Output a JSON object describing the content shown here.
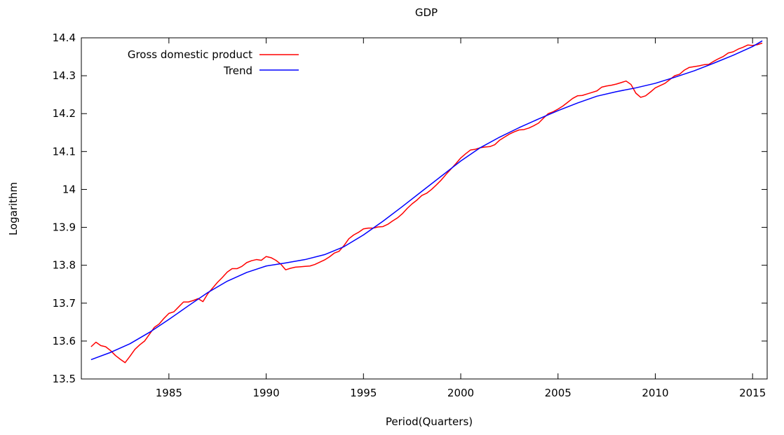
{
  "chart_data": {
    "type": "line",
    "title": "GDP",
    "xlabel": "Period(Quarters)",
    "ylabel": "Logarithm",
    "xlim": [
      1980.5,
      2015.75
    ],
    "ylim": [
      13.5,
      14.4
    ],
    "x_ticks": [
      1985,
      1990,
      1995,
      2000,
      2005,
      2010,
      2015
    ],
    "x_tick_labels": [
      "1985",
      "1990",
      "1995",
      "2000",
      "2005",
      "2010",
      "2015"
    ],
    "y_ticks": [
      13.5,
      13.6,
      13.7,
      13.8,
      13.9,
      14.0,
      14.1,
      14.2,
      14.3,
      14.4
    ],
    "y_tick_labels": [
      "13.5",
      "13.6",
      "13.7",
      "13.8",
      "13.9",
      "14",
      "14.1",
      "14.2",
      "14.3",
      "14.4"
    ],
    "grid": false,
    "legend_position": "top-left",
    "series": [
      {
        "name": "Gross domestic product",
        "color": "#ff0000",
        "x": [
          1981.0,
          1981.25,
          1981.5,
          1981.75,
          1982.0,
          1982.25,
          1982.5,
          1982.75,
          1983.0,
          1983.25,
          1983.5,
          1983.75,
          1984.0,
          1984.25,
          1984.5,
          1984.75,
          1985.0,
          1985.25,
          1985.5,
          1985.75,
          1986.0,
          1986.25,
          1986.5,
          1986.75,
          1987.0,
          1987.25,
          1987.5,
          1987.75,
          1988.0,
          1988.25,
          1988.5,
          1988.75,
          1989.0,
          1989.25,
          1989.5,
          1989.75,
          1990.0,
          1990.25,
          1990.5,
          1990.75,
          1991.0,
          1991.25,
          1991.5,
          1991.75,
          1992.0,
          1992.25,
          1992.5,
          1992.75,
          1993.0,
          1993.25,
          1993.5,
          1993.75,
          1994.0,
          1994.25,
          1994.5,
          1994.75,
          1995.0,
          1995.25,
          1995.5,
          1995.75,
          1996.0,
          1996.25,
          1996.5,
          1996.75,
          1997.0,
          1997.25,
          1997.5,
          1997.75,
          1998.0,
          1998.25,
          1998.5,
          1998.75,
          1999.0,
          1999.25,
          1999.5,
          1999.75,
          2000.0,
          2000.25,
          2000.5,
          2000.75,
          2001.0,
          2001.25,
          2001.5,
          2001.75,
          2002.0,
          2002.25,
          2002.5,
          2002.75,
          2003.0,
          2003.25,
          2003.5,
          2003.75,
          2004.0,
          2004.25,
          2004.5,
          2004.75,
          2005.0,
          2005.25,
          2005.5,
          2005.75,
          2006.0,
          2006.25,
          2006.5,
          2006.75,
          2007.0,
          2007.25,
          2007.5,
          2007.75,
          2008.0,
          2008.25,
          2008.5,
          2008.75,
          2009.0,
          2009.25,
          2009.5,
          2009.75,
          2010.0,
          2010.25,
          2010.5,
          2010.75,
          2011.0,
          2011.25,
          2011.5,
          2011.75,
          2012.0,
          2012.25,
          2012.5,
          2012.75,
          2013.0,
          2013.25,
          2013.5,
          2013.75,
          2014.0,
          2014.25,
          2014.5,
          2014.75,
          2015.0,
          2015.25,
          2015.5
        ],
        "values": [
          13.585,
          13.597,
          13.588,
          13.585,
          13.575,
          13.562,
          13.552,
          13.543,
          13.56,
          13.578,
          13.59,
          13.6,
          13.618,
          13.636,
          13.645,
          13.66,
          13.673,
          13.677,
          13.69,
          13.703,
          13.703,
          13.707,
          13.712,
          13.704,
          13.725,
          13.74,
          13.755,
          13.768,
          13.782,
          13.791,
          13.791,
          13.797,
          13.807,
          13.812,
          13.815,
          13.813,
          13.823,
          13.82,
          13.813,
          13.803,
          13.788,
          13.792,
          13.795,
          13.796,
          13.797,
          13.798,
          13.802,
          13.808,
          13.814,
          13.822,
          13.832,
          13.837,
          13.852,
          13.87,
          13.88,
          13.887,
          13.896,
          13.898,
          13.898,
          13.901,
          13.902,
          13.908,
          13.917,
          13.925,
          13.936,
          13.95,
          13.962,
          13.972,
          13.984,
          13.99,
          14.0,
          14.012,
          14.025,
          14.04,
          14.054,
          14.068,
          14.083,
          14.094,
          14.104,
          14.106,
          14.11,
          14.112,
          14.113,
          14.118,
          14.13,
          14.138,
          14.146,
          14.152,
          14.157,
          14.158,
          14.162,
          14.168,
          14.175,
          14.188,
          14.2,
          14.205,
          14.212,
          14.22,
          14.23,
          14.24,
          14.247,
          14.248,
          14.252,
          14.256,
          14.26,
          14.27,
          14.273,
          14.275,
          14.278,
          14.282,
          14.286,
          14.277,
          14.254,
          14.243,
          14.247,
          14.257,
          14.268,
          14.274,
          14.28,
          14.29,
          14.3,
          14.304,
          14.315,
          14.322,
          14.324,
          14.326,
          14.329,
          14.33,
          14.338,
          14.345,
          14.351,
          14.36,
          14.363,
          14.37,
          14.375,
          14.381,
          14.38,
          14.382,
          14.386
        ]
      },
      {
        "name": "Trend",
        "color": "#0000ff",
        "x": [
          1981,
          1982,
          1983,
          1984,
          1985,
          1986,
          1987,
          1988,
          1989,
          1990,
          1991,
          1992,
          1993,
          1994,
          1995,
          1996,
          1997,
          1998,
          1999,
          2000,
          2001,
          2002,
          2003,
          2004,
          2005,
          2006,
          2007,
          2008,
          2009,
          2010,
          2011,
          2012,
          2013,
          2014,
          2015,
          2015.5
        ],
        "values": [
          13.551,
          13.57,
          13.593,
          13.623,
          13.657,
          13.693,
          13.728,
          13.758,
          13.781,
          13.798,
          13.806,
          13.815,
          13.828,
          13.849,
          13.88,
          13.916,
          13.955,
          13.995,
          14.035,
          14.075,
          14.11,
          14.138,
          14.163,
          14.186,
          14.208,
          14.228,
          14.246,
          14.258,
          14.268,
          14.28,
          14.296,
          14.313,
          14.333,
          14.354,
          14.377,
          14.392
        ]
      }
    ]
  }
}
